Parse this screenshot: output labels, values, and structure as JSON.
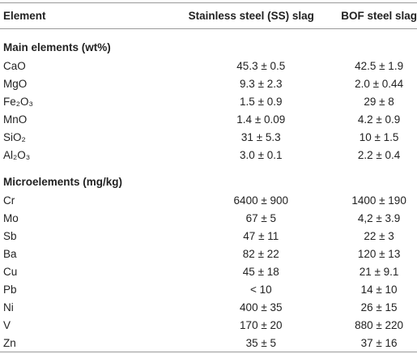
{
  "table": {
    "header": [
      "Element",
      "Stainless steel (SS) slag",
      "BOF steel slag"
    ],
    "sections": [
      {
        "title": "Main elements (wt%)",
        "rows": [
          [
            "CaO",
            "45.3 ± 0.5",
            "42.5 ± 1.9"
          ],
          [
            "MgO",
            "9.3 ± 2.3",
            "2.0 ± 0.44"
          ],
          [
            "Fe₂O₃",
            "1.5 ± 0.9",
            "29 ± 8"
          ],
          [
            "MnO",
            "1.4 ± 0.09",
            "4.2 ± 0.9"
          ],
          [
            "SiO₂",
            "31 ± 5.3",
            "10 ± 1.5"
          ],
          [
            "Al₂O₃",
            "3.0 ± 0.1",
            "2.2 ± 0.4"
          ]
        ]
      },
      {
        "title": "Microelements (mg/kg)",
        "rows": [
          [
            "Cr",
            "6400 ± 900",
            "1400 ± 190"
          ],
          [
            "Mo",
            "67 ± 5",
            "4,2 ± 3.9"
          ],
          [
            "Sb",
            "47 ± 11",
            "22 ± 3"
          ],
          [
            "Ba",
            "82 ± 22",
            "120 ± 13"
          ],
          [
            "Cu",
            "45 ± 18",
            "21 ± 9.1"
          ],
          [
            "Pb",
            "< 10",
            "14 ± 10"
          ],
          [
            "Ni",
            "400 ± 35",
            "26 ± 15"
          ],
          [
            "V",
            "170 ± 20",
            "880 ± 220"
          ],
          [
            "Zn",
            "35 ± 5",
            "37 ± 16"
          ]
        ]
      }
    ]
  }
}
